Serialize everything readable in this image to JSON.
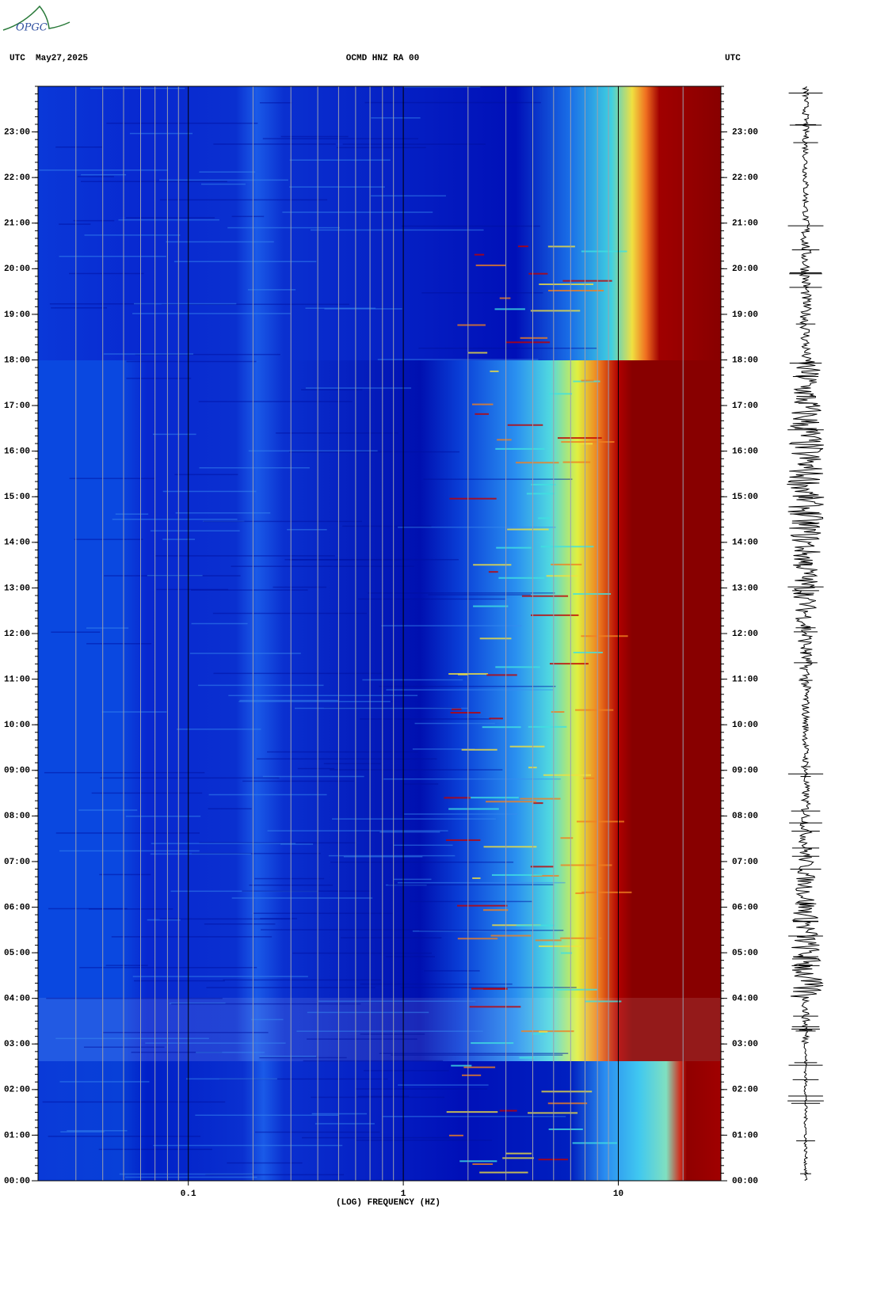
{
  "logo_text": "OPGC",
  "chart_data": {
    "type": "spectrogram",
    "header_left": "UTC  May27,2025",
    "title": "OCMD HNZ RA 00",
    "header_right": "UTC",
    "xlabel": "(LOG) FREQUENCY (HZ)",
    "xscale": "log",
    "xlim": [
      0.02,
      30
    ],
    "xticks": [
      0.1,
      1,
      10
    ],
    "xgrid": [
      0.03,
      0.04,
      0.05,
      0.06,
      0.07,
      0.08,
      0.09,
      0.2,
      0.3,
      0.4,
      0.5,
      0.6,
      0.7,
      0.8,
      0.9,
      2,
      3,
      4,
      5,
      6,
      7,
      8,
      9,
      20
    ],
    "ylim": [
      0,
      24
    ],
    "yticks": [
      {
        "value": 0,
        "label": "00:00"
      },
      {
        "value": 1,
        "label": "01:00"
      },
      {
        "value": 2,
        "label": "02:00"
      },
      {
        "value": 3,
        "label": "03:00"
      },
      {
        "value": 4,
        "label": "04:00"
      },
      {
        "value": 5,
        "label": "05:00"
      },
      {
        "value": 6,
        "label": "06:00"
      },
      {
        "value": 7,
        "label": "07:00"
      },
      {
        "value": 8,
        "label": "08:00"
      },
      {
        "value": 9,
        "label": "09:00"
      },
      {
        "value": 10,
        "label": "10:00"
      },
      {
        "value": 11,
        "label": "11:00"
      },
      {
        "value": 12,
        "label": "12:00"
      },
      {
        "value": 13,
        "label": "13:00"
      },
      {
        "value": 14,
        "label": "14:00"
      },
      {
        "value": 15,
        "label": "15:00"
      },
      {
        "value": 16,
        "label": "16:00"
      },
      {
        "value": 17,
        "label": "17:00"
      },
      {
        "value": 18,
        "label": "18:00"
      },
      {
        "value": 19,
        "label": "19:00"
      },
      {
        "value": 20,
        "label": "20:00"
      },
      {
        "value": 21,
        "label": "21:00"
      },
      {
        "value": 22,
        "label": "22:00"
      },
      {
        "value": 23,
        "label": "23:00"
      }
    ]
  }
}
